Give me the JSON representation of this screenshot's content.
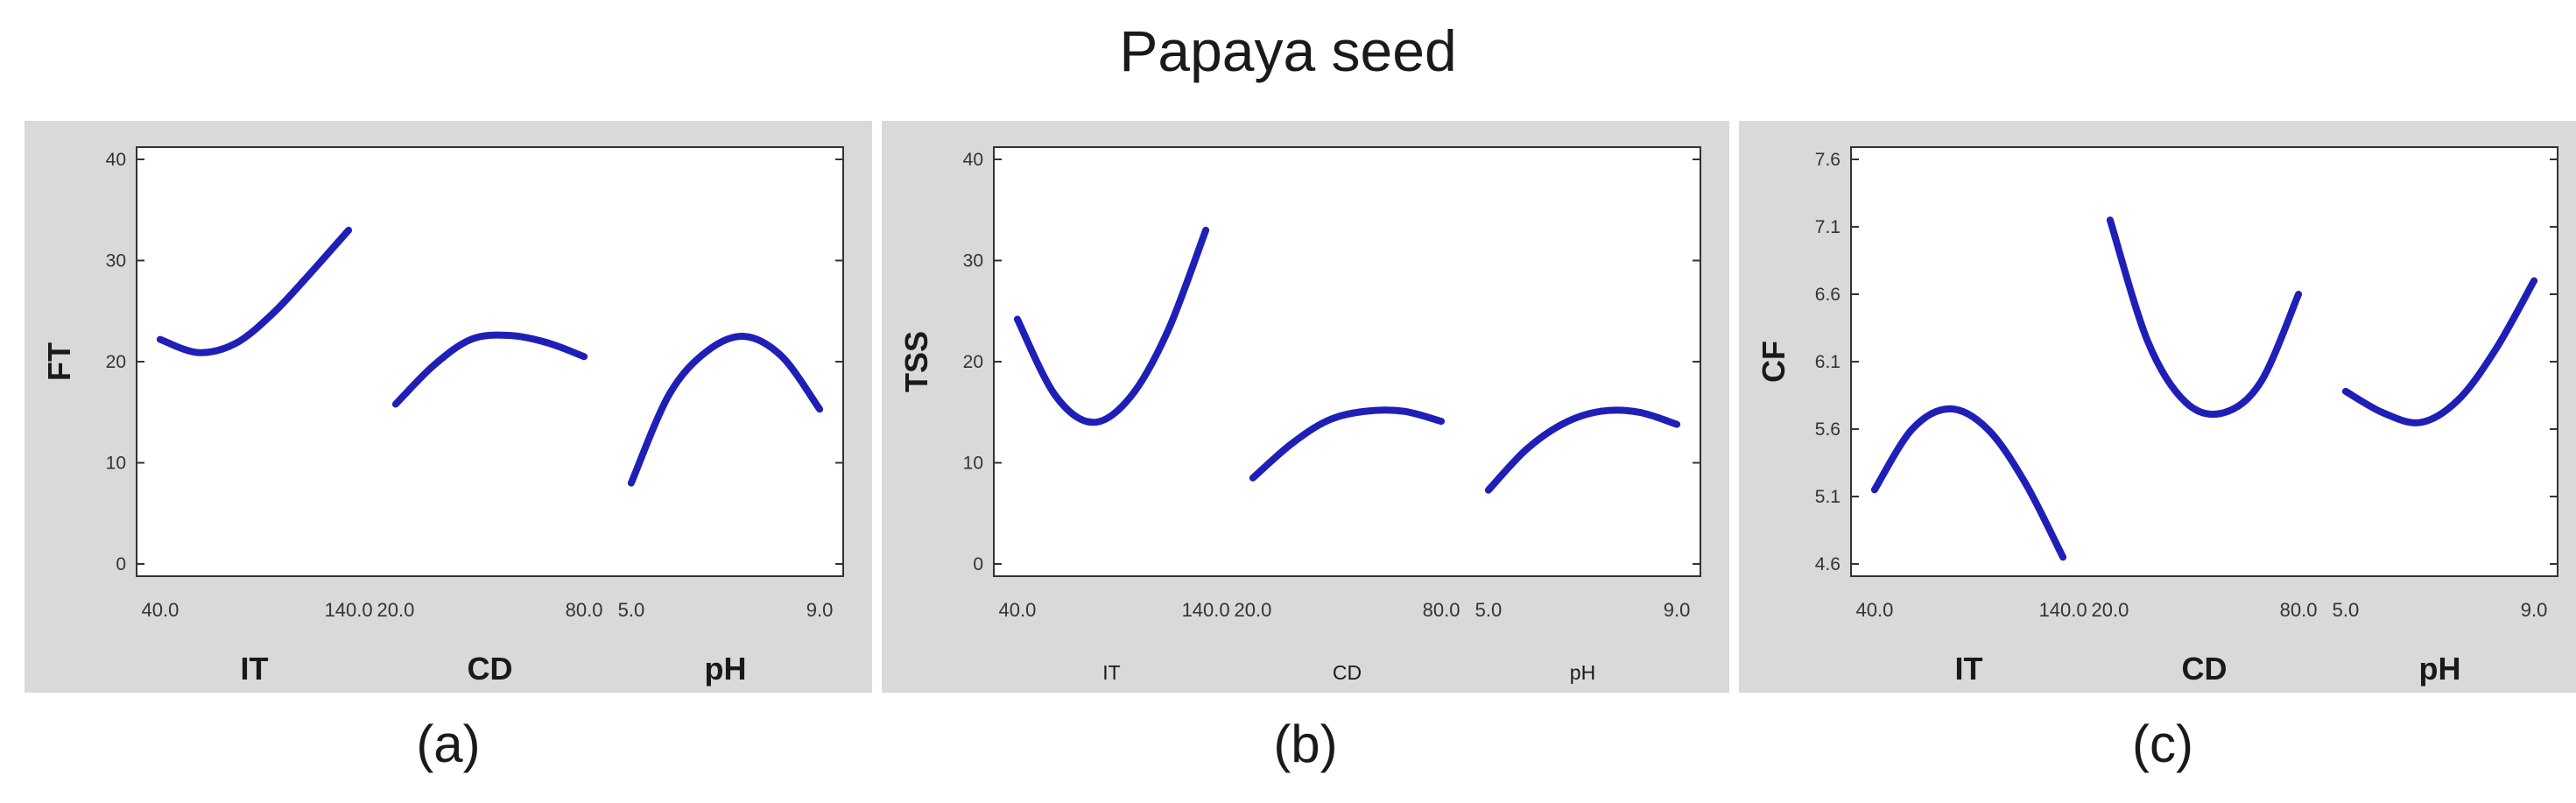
{
  "title": "Papaya seed",
  "chart_data": [
    {
      "type": "line",
      "caption": "(a)",
      "ylabel": "FT",
      "ylim": [
        0,
        40
      ],
      "yticks": [
        "0",
        "10",
        "20",
        "30",
        "40"
      ],
      "ytick_values": [
        0,
        10,
        20,
        30,
        40
      ],
      "factors": [
        "IT",
        "CD",
        "pH"
      ],
      "factor_ticks": [
        [
          "40.0",
          "140.0"
        ],
        [
          "20.0",
          "80.0"
        ],
        [
          "5.0",
          "9.0"
        ]
      ],
      "series": [
        {
          "factor": "IT",
          "x": [
            40,
            60,
            80,
            100,
            120,
            140
          ],
          "y": [
            22.2,
            20.9,
            21.8,
            24.8,
            28.8,
            33.0
          ]
        },
        {
          "factor": "CD",
          "x": [
            20,
            32,
            44,
            56,
            68,
            80
          ],
          "y": [
            15.8,
            19.6,
            22.2,
            22.6,
            21.9,
            20.5
          ]
        },
        {
          "factor": "pH",
          "x": [
            5.0,
            5.8,
            6.6,
            7.4,
            8.2,
            9.0
          ],
          "y": [
            8.0,
            16.7,
            21.0,
            22.5,
            20.5,
            15.3
          ]
        }
      ],
      "color": "#1f1fb8",
      "bold_labels": true
    },
    {
      "type": "line",
      "caption": "(b)",
      "ylabel": "TSS",
      "ylim": [
        0,
        40
      ],
      "yticks": [
        "0",
        "10",
        "20",
        "30",
        "40"
      ],
      "ytick_values": [
        0,
        10,
        20,
        30,
        40
      ],
      "factors": [
        "IT",
        "CD",
        "pH"
      ],
      "factor_ticks": [
        [
          "40.0",
          "140.0"
        ],
        [
          "20.0",
          "80.0"
        ],
        [
          "5.0",
          "9.0"
        ]
      ],
      "series": [
        {
          "factor": "IT",
          "x": [
            40,
            60,
            80,
            100,
            120,
            140
          ],
          "y": [
            24.2,
            16.7,
            14.0,
            16.5,
            23.1,
            33.0
          ]
        },
        {
          "factor": "CD",
          "x": [
            20,
            32,
            44,
            56,
            68,
            80
          ],
          "y": [
            8.5,
            11.8,
            14.2,
            15.1,
            15.1,
            14.1
          ]
        },
        {
          "factor": "pH",
          "x": [
            5.0,
            5.8,
            6.6,
            7.4,
            8.2,
            9.0
          ],
          "y": [
            7.3,
            11.3,
            13.9,
            15.1,
            15.0,
            13.8
          ]
        }
      ],
      "color": "#1f1fb8",
      "bold_labels": false
    },
    {
      "type": "line",
      "caption": "(c)",
      "ylabel": "CF",
      "ylim": [
        4.6,
        7.6
      ],
      "yticks": [
        "4.6",
        "5.1",
        "5.6",
        "6.1",
        "6.6",
        "7.1",
        "7.6"
      ],
      "ytick_values": [
        4.6,
        5.1,
        5.6,
        6.1,
        6.6,
        7.1,
        7.6
      ],
      "factors": [
        "IT",
        "CD",
        "pH"
      ],
      "factor_ticks": [
        [
          "40.0",
          "140.0"
        ],
        [
          "20.0",
          "80.0"
        ],
        [
          "5.0",
          "9.0"
        ]
      ],
      "series": [
        {
          "factor": "IT",
          "x": [
            40,
            60,
            80,
            100,
            120,
            140
          ],
          "y": [
            5.15,
            5.6,
            5.75,
            5.6,
            5.2,
            4.65
          ]
        },
        {
          "factor": "CD",
          "x": [
            20,
            32,
            44,
            56,
            68,
            80
          ],
          "y": [
            7.15,
            6.25,
            5.8,
            5.72,
            5.95,
            6.6
          ]
        },
        {
          "factor": "pH",
          "x": [
            5.0,
            5.8,
            6.6,
            7.4,
            8.2,
            9.0
          ],
          "y": [
            5.88,
            5.72,
            5.65,
            5.82,
            6.2,
            6.7
          ]
        }
      ],
      "color": "#1f1fb8",
      "bold_labels": true
    }
  ]
}
